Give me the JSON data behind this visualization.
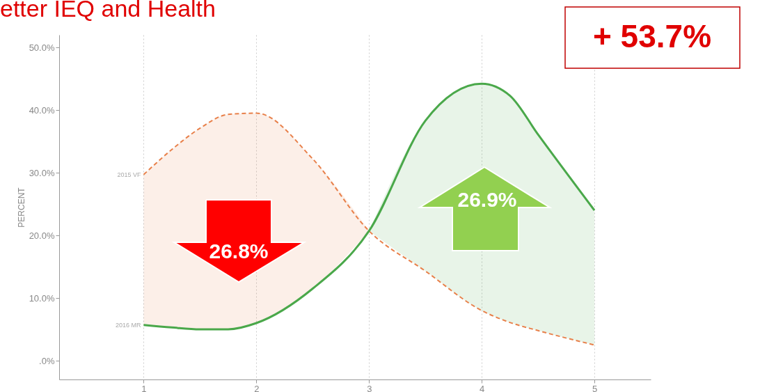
{
  "chart_data": {
    "type": "line",
    "title": "etter IEQ and Health",
    "ylabel": "PERCENT",
    "x": [
      1,
      1.25,
      1.5,
      1.75,
      2,
      2.5,
      3,
      3.5,
      4,
      4.25,
      4.5,
      5
    ],
    "series": [
      {
        "name": "2015 VF",
        "color": "#e8804a",
        "line_style": "dashed",
        "values": [
          29.7,
          33.7,
          37.1,
          39.3,
          39.5,
          32.2,
          20.7,
          14.3,
          8.0,
          6.1,
          4.8,
          2.5
        ],
        "lower": [
          5.7,
          5.3,
          5.0,
          5.0,
          6.0,
          11.5,
          20.7,
          null,
          null,
          null,
          null,
          null
        ],
        "upper": [
          29.7,
          33.7,
          37.1,
          39.3,
          39.5,
          32.2,
          20.7,
          null,
          null,
          null,
          null,
          null
        ]
      },
      {
        "name": "2016 MR",
        "color": "#4aa84a",
        "line_style": "solid",
        "values": [
          5.7,
          5.3,
          5.0,
          5.0,
          6.0,
          11.5,
          20.7,
          38.3,
          44.2,
          42.3,
          36.1,
          24.0
        ],
        "lower": [
          null,
          null,
          null,
          null,
          null,
          null,
          20.7,
          14.3,
          8.0,
          6.1,
          4.8,
          2.5
        ],
        "upper": [
          null,
          null,
          null,
          null,
          null,
          null,
          20.7,
          38.3,
          44.2,
          42.3,
          36.1,
          24.0
        ]
      }
    ],
    "xlim": [
      0.25,
      5.5
    ],
    "xticks": [
      1,
      2,
      3,
      4,
      5
    ],
    "ylim": [
      -3,
      52
    ],
    "yticks": [
      {
        "value": 0,
        "label": ".0%"
      },
      {
        "value": 10,
        "label": "10.0%"
      },
      {
        "value": 20,
        "label": "20.0%"
      },
      {
        "value": 30,
        "label": "30.0%"
      },
      {
        "value": 40,
        "label": "40.0%"
      },
      {
        "value": 50,
        "label": "50.0%"
      }
    ],
    "grid": "x",
    "marker": "none",
    "annotations": [
      "+ 53.7%",
      "26.8%",
      "26.9%"
    ]
  }
}
